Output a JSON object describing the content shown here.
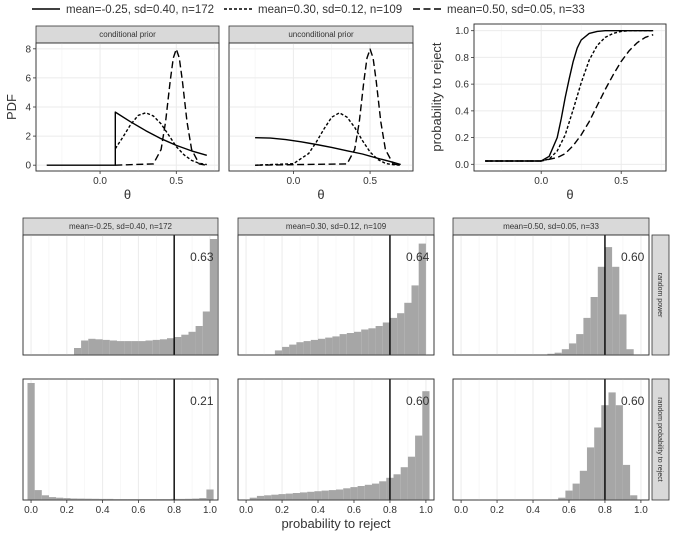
{
  "legend": {
    "items": [
      {
        "label": "mean=-0.25, sd=0.40, n=172",
        "dash": "solid"
      },
      {
        "label": "mean=0.30, sd=0.12, n=109",
        "dash": "dotted"
      },
      {
        "label": "mean=0.50, sd=0.05, n=33",
        "dash": "dashed"
      }
    ]
  },
  "colors": {
    "strip": "#d9d9d9",
    "bar": "#a6a6a6",
    "grid": "#ebebeb",
    "line": "#000000"
  },
  "chart_data": [
    {
      "type": "line",
      "title": "conditional prior",
      "ylabel": "PDF",
      "xlabel": "θ",
      "xticks": [
        0.0,
        0.5
      ],
      "xtick_labels": [
        "0.0",
        "0.5"
      ],
      "yticks": [
        0,
        2,
        4,
        6,
        8
      ],
      "ytick_labels": [
        "0",
        "2",
        "4",
        "6",
        "8"
      ],
      "xlim": [
        -0.42,
        0.78
      ],
      "ylim": [
        -0.4,
        8.4
      ],
      "grid": true,
      "series": [
        {
          "name": "mean=-0.25, sd=0.40, n=172",
          "dash": "solid",
          "x": [
            -0.35,
            0.1,
            0.1,
            0.2,
            0.3,
            0.4,
            0.5,
            0.6,
            0.7
          ],
          "y": [
            0,
            0,
            3.65,
            2.98,
            2.37,
            1.82,
            1.36,
            0.98,
            0.68
          ]
        },
        {
          "name": "mean=0.30, sd=0.12, n=109",
          "dash": "dotted",
          "x": [
            0.1,
            0.15,
            0.2,
            0.25,
            0.3,
            0.35,
            0.4,
            0.45,
            0.5,
            0.55,
            0.6,
            0.65,
            0.7
          ],
          "y": [
            1.13,
            1.93,
            2.79,
            3.42,
            3.6,
            3.38,
            2.84,
            2.07,
            1.28,
            0.72,
            0.33,
            0.13,
            0.04
          ]
        },
        {
          "name": "mean=0.50, sd=0.05, n=33",
          "dash": "dashed",
          "x": [
            0.1,
            0.35,
            0.4,
            0.43,
            0.46,
            0.48,
            0.5,
            0.52,
            0.54,
            0.57,
            0.6,
            0.65,
            0.7
          ],
          "y": [
            0,
            0.09,
            1.08,
            2.99,
            5.79,
            7.37,
            7.98,
            7.37,
            5.79,
            2.99,
            1.08,
            0.09,
            0
          ]
        }
      ]
    },
    {
      "type": "line",
      "title": "unconditional prior",
      "xlabel": "θ",
      "xticks": [
        0.0,
        0.5
      ],
      "xtick_labels": [
        "0.0",
        "0.5"
      ],
      "xlim": [
        -0.42,
        0.78
      ],
      "ylim": [
        -0.4,
        8.4
      ],
      "grid": true,
      "series": [
        {
          "name": "mean=-0.25, sd=0.40, n=172",
          "dash": "solid",
          "x": [
            -0.25,
            -0.15,
            -0.05,
            0.05,
            0.15,
            0.25,
            0.35,
            0.45,
            0.55,
            0.65,
            0.7
          ],
          "y": [
            1.89,
            1.86,
            1.76,
            1.61,
            1.42,
            1.22,
            0.99,
            0.77,
            0.47,
            0.2,
            0.05
          ]
        },
        {
          "name": "mean=0.30, sd=0.12, n=109",
          "dash": "dotted",
          "x": [
            -0.25,
            0.0,
            0.1,
            0.15,
            0.2,
            0.25,
            0.3,
            0.35,
            0.4,
            0.45,
            0.5,
            0.55,
            0.6,
            0.65,
            0.7
          ],
          "y": [
            0,
            0.1,
            0.8,
            1.6,
            2.5,
            3.3,
            3.6,
            3.3,
            2.6,
            1.7,
            0.9,
            0.4,
            0.12,
            0.03,
            0
          ]
        },
        {
          "name": "mean=0.50, sd=0.05, n=33",
          "dash": "dashed",
          "x": [
            -0.25,
            0.35,
            0.4,
            0.43,
            0.46,
            0.48,
            0.5,
            0.52,
            0.54,
            0.57,
            0.6,
            0.65,
            0.7
          ],
          "y": [
            0,
            0.09,
            1.08,
            2.99,
            5.79,
            7.37,
            7.98,
            7.37,
            5.79,
            2.99,
            1.08,
            0.09,
            0
          ]
        }
      ]
    },
    {
      "type": "line",
      "ylabel": "probability to reject",
      "xlabel": "θ",
      "xticks": [
        0.0,
        0.5
      ],
      "xtick_labels": [
        "0.0",
        "0.5"
      ],
      "yticks": [
        0,
        0.2,
        0.4,
        0.6,
        0.8,
        1.0
      ],
      "ytick_labels": [
        "0.0",
        "0.2",
        "0.4",
        "0.6",
        "0.8",
        "1.0"
      ],
      "xlim": [
        -0.42,
        0.78
      ],
      "ylim": [
        -0.05,
        1.05
      ],
      "grid": true,
      "series": [
        {
          "name": "mean=-0.25, sd=0.40, n=172",
          "dash": "solid",
          "x": [
            -0.35,
            0.0,
            0.05,
            0.1,
            0.125,
            0.15,
            0.175,
            0.2,
            0.225,
            0.25,
            0.3,
            0.35,
            0.4,
            0.5,
            0.7
          ],
          "y": [
            0.025,
            0.025,
            0.06,
            0.2,
            0.34,
            0.5,
            0.64,
            0.77,
            0.87,
            0.93,
            0.98,
            0.995,
            1.0,
            1.0,
            1.0
          ]
        },
        {
          "name": "mean=0.30, sd=0.12, n=109",
          "dash": "dotted",
          "x": [
            -0.35,
            0.0,
            0.05,
            0.1,
            0.15,
            0.2,
            0.25,
            0.3,
            0.35,
            0.4,
            0.45,
            0.5,
            0.55,
            0.7
          ],
          "y": [
            0.025,
            0.025,
            0.04,
            0.1,
            0.22,
            0.41,
            0.61,
            0.78,
            0.89,
            0.95,
            0.98,
            0.995,
            1.0,
            1.0
          ]
        },
        {
          "name": "mean=0.50, sd=0.05, n=33",
          "dash": "dashed",
          "x": [
            -0.35,
            0.0,
            0.1,
            0.15,
            0.2,
            0.25,
            0.3,
            0.35,
            0.4,
            0.45,
            0.5,
            0.55,
            0.6,
            0.65,
            0.7
          ],
          "y": [
            0.025,
            0.025,
            0.05,
            0.08,
            0.14,
            0.22,
            0.32,
            0.44,
            0.56,
            0.67,
            0.77,
            0.85,
            0.91,
            0.95,
            0.97
          ]
        }
      ]
    },
    {
      "type": "bar",
      "title": "mean=-0.25, sd=0.40, n=172",
      "row_label": "random power",
      "value_label": "0.63",
      "vline": 0.8,
      "bin_width": 0.04,
      "bin_starts": [
        0.24,
        0.28,
        0.32,
        0.36,
        0.4,
        0.44,
        0.48,
        0.52,
        0.56,
        0.6,
        0.64,
        0.68,
        0.72,
        0.76,
        0.8,
        0.84,
        0.88,
        0.92,
        0.96,
        1.0
      ],
      "values": [
        0.012,
        0.025,
        0.028,
        0.027,
        0.026,
        0.025,
        0.024,
        0.024,
        0.024,
        0.024,
        0.025,
        0.026,
        0.027,
        0.029,
        0.031,
        0.035,
        0.04,
        0.05,
        0.075,
        0.2
      ],
      "ylim": [
        0,
        0.2
      ],
      "grid": true
    },
    {
      "type": "bar",
      "title": "mean=0.30, sd=0.12, n=109",
      "row_label": "random power",
      "value_label": "0.64",
      "vline": 0.8,
      "bin_width": 0.04,
      "bin_starts": [
        0.16,
        0.2,
        0.24,
        0.28,
        0.32,
        0.36,
        0.4,
        0.44,
        0.48,
        0.52,
        0.56,
        0.6,
        0.64,
        0.68,
        0.72,
        0.76,
        0.8,
        0.84,
        0.88,
        0.92,
        0.96
      ],
      "values": [
        0.004,
        0.007,
        0.009,
        0.011,
        0.012,
        0.013,
        0.014,
        0.015,
        0.016,
        0.018,
        0.019,
        0.02,
        0.022,
        0.023,
        0.025,
        0.028,
        0.032,
        0.036,
        0.045,
        0.06,
        0.096
      ],
      "ylim": [
        0,
        0.1
      ],
      "grid": true
    },
    {
      "type": "bar",
      "title": "mean=0.50, sd=0.05, n=33",
      "row_label": "random power",
      "value_label": "0.60",
      "vline": 0.8,
      "bin_width": 0.04,
      "bin_starts": [
        0.44,
        0.48,
        0.52,
        0.56,
        0.6,
        0.64,
        0.68,
        0.72,
        0.76,
        0.8,
        0.84,
        0.88,
        0.92
      ],
      "values": [
        0.005,
        0.01,
        0.02,
        0.05,
        0.1,
        0.18,
        0.32,
        0.5,
        0.76,
        0.93,
        0.76,
        0.35,
        0.05
      ],
      "ylim": [
        0,
        1.0
      ],
      "grid": true
    },
    {
      "type": "bar",
      "xlabel": "probability to reject",
      "row_label": "random probability to reject",
      "value_label": "0.21",
      "vline": 0.8,
      "bin_width": 0.04,
      "bin_starts": [
        -0.02,
        0.02,
        0.06,
        0.1,
        0.14,
        0.18,
        0.22,
        0.26,
        0.3,
        0.34,
        0.38,
        0.42,
        0.46,
        0.5,
        0.54,
        0.58,
        0.62,
        0.66,
        0.7,
        0.74,
        0.78,
        0.82,
        0.86,
        0.9,
        0.94,
        0.98
      ],
      "values": [
        1.0,
        0.085,
        0.04,
        0.025,
        0.02,
        0.016,
        0.013,
        0.012,
        0.011,
        0.01,
        0.009,
        0.009,
        0.008,
        0.008,
        0.008,
        0.008,
        0.008,
        0.008,
        0.008,
        0.008,
        0.009,
        0.009,
        0.01,
        0.012,
        0.016,
        0.09
      ],
      "xticks": [
        0.0,
        0.2,
        0.4,
        0.6,
        0.8,
        1.0
      ],
      "xtick_labels": [
        "0.0",
        "0.2",
        "0.4",
        "0.6",
        "0.8",
        "1.0"
      ],
      "ylim": [
        0,
        1.0
      ],
      "grid": true
    },
    {
      "type": "bar",
      "row_label": "random probability to reject",
      "value_label": "0.60",
      "vline": 0.8,
      "bin_width": 0.04,
      "bin_starts": [
        0.02,
        0.06,
        0.1,
        0.14,
        0.18,
        0.22,
        0.26,
        0.3,
        0.34,
        0.38,
        0.42,
        0.46,
        0.5,
        0.54,
        0.58,
        0.62,
        0.66,
        0.7,
        0.74,
        0.78,
        0.82,
        0.86,
        0.9,
        0.94,
        0.98
      ],
      "values": [
        0.02,
        0.035,
        0.04,
        0.045,
        0.05,
        0.055,
        0.06,
        0.065,
        0.07,
        0.075,
        0.08,
        0.085,
        0.09,
        0.1,
        0.11,
        0.12,
        0.13,
        0.14,
        0.16,
        0.19,
        0.22,
        0.28,
        0.37,
        0.55,
        0.93
      ],
      "xticks": [
        0.0,
        0.2,
        0.4,
        0.6,
        0.8,
        1.0
      ],
      "xtick_labels": [
        "0.0",
        "0.2",
        "0.4",
        "0.6",
        "0.8",
        "1.0"
      ],
      "ylim": [
        0,
        1.0
      ],
      "grid": true
    },
    {
      "type": "bar",
      "row_label": "random probability to reject",
      "value_label": "0.60",
      "vline": 0.8,
      "bin_width": 0.04,
      "bin_starts": [
        0.54,
        0.58,
        0.62,
        0.66,
        0.7,
        0.74,
        0.78,
        0.82,
        0.86,
        0.9,
        0.94
      ],
      "values": [
        0.02,
        0.08,
        0.14,
        0.25,
        0.45,
        0.62,
        0.81,
        0.92,
        0.81,
        0.3,
        0.04
      ],
      "xticks": [
        0.0,
        0.2,
        0.4,
        0.6,
        0.8,
        1.0
      ],
      "xtick_labels": [
        "0.0",
        "0.2",
        "0.4",
        "0.6",
        "0.8",
        "1.0"
      ],
      "ylim": [
        0,
        1.0
      ],
      "grid": true
    }
  ]
}
